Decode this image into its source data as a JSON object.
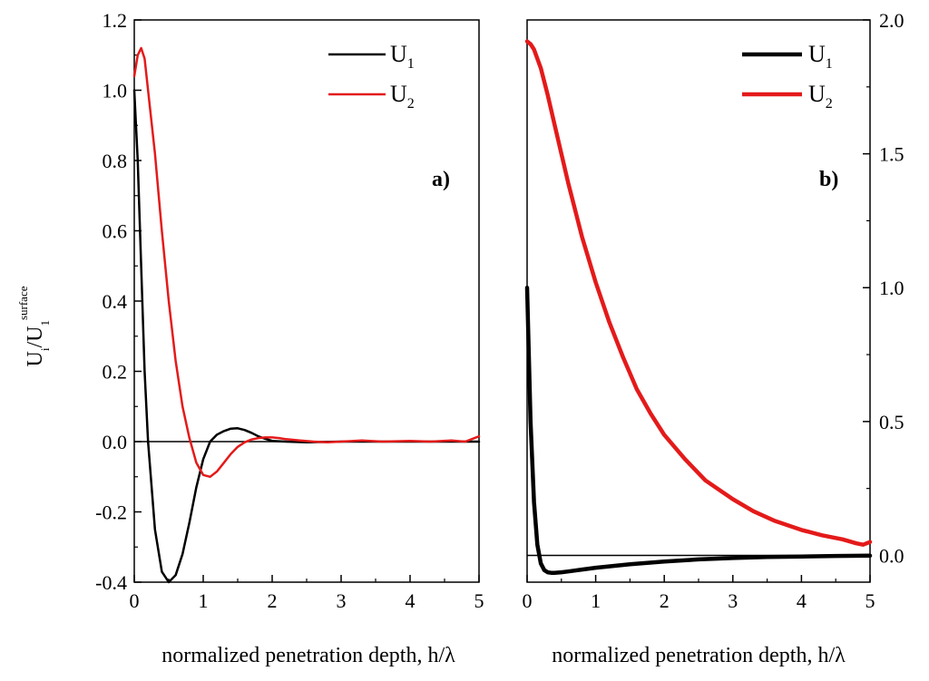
{
  "chart_data": [
    {
      "type": "line",
      "panel_label": "a)",
      "xlabel": "normalized penetration depth, h/λ",
      "ylabel": {
        "main": "U",
        "sub_i": "i",
        "slash": "/U",
        "sub_1": "1",
        "sup": "surface"
      },
      "xlim": [
        0,
        5
      ],
      "ylim": [
        -0.4,
        1.2
      ],
      "x_ticks": [
        0,
        1,
        2,
        3,
        4,
        5
      ],
      "y_ticks": [
        -0.4,
        -0.2,
        0.0,
        0.2,
        0.4,
        0.6,
        0.8,
        1.0,
        1.2
      ],
      "y_tick_labels": [
        "-0.4",
        "-0.2",
        "0.0",
        "0.2",
        "0.4",
        "0.6",
        "0.8",
        "1.0",
        "1.2"
      ],
      "x_tick_labels": [
        "0",
        "1",
        "2",
        "3",
        "4",
        "5"
      ],
      "y_axis_side": "left",
      "zero_line": true,
      "legend": [
        {
          "name": "U",
          "sub": "1",
          "color": "#000000"
        },
        {
          "name": "U",
          "sub": "2",
          "color": "#e41a1a"
        }
      ],
      "series": [
        {
          "name": "U1",
          "color": "#000000",
          "x": [
            0,
            0.05,
            0.1,
            0.15,
            0.2,
            0.3,
            0.4,
            0.5,
            0.6,
            0.7,
            0.8,
            0.9,
            1.0,
            1.1,
            1.2,
            1.3,
            1.4,
            1.5,
            1.6,
            1.7,
            1.8,
            1.9,
            2.0,
            2.2,
            2.5,
            3.0,
            3.5,
            4.0,
            4.5,
            5.0
          ],
          "y": [
            1.0,
            0.8,
            0.5,
            0.2,
            0.0,
            -0.25,
            -0.37,
            -0.4,
            -0.38,
            -0.32,
            -0.23,
            -0.13,
            -0.05,
            0.0,
            0.02,
            0.03,
            0.037,
            0.038,
            0.033,
            0.025,
            0.015,
            0.008,
            0.002,
            0.0,
            -0.002,
            0.0,
            0.0,
            0.0,
            0.0,
            0.0
          ]
        },
        {
          "name": "U2",
          "color": "#e41a1a",
          "x": [
            0,
            0.05,
            0.1,
            0.15,
            0.2,
            0.3,
            0.4,
            0.5,
            0.6,
            0.7,
            0.8,
            0.9,
            1.0,
            1.1,
            1.2,
            1.3,
            1.4,
            1.5,
            1.6,
            1.7,
            1.8,
            1.9,
            2.0,
            2.1,
            2.2,
            2.4,
            2.6,
            2.8,
            3.0,
            3.3,
            3.6,
            4.0,
            4.3,
            4.6,
            4.8,
            5.0
          ],
          "y": [
            1.04,
            1.1,
            1.12,
            1.09,
            1.0,
            0.82,
            0.6,
            0.4,
            0.23,
            0.1,
            0.01,
            -0.06,
            -0.095,
            -0.1,
            -0.085,
            -0.06,
            -0.035,
            -0.015,
            -0.002,
            0.006,
            0.01,
            0.012,
            0.012,
            0.01,
            0.007,
            0.003,
            0.0,
            -0.002,
            0.0,
            0.003,
            0.0,
            0.002,
            0.0,
            0.003,
            0.0,
            0.015
          ]
        }
      ]
    },
    {
      "type": "line",
      "panel_label": "b)",
      "xlabel": "normalized penetration depth, h/λ",
      "xlim": [
        0,
        5
      ],
      "ylim": [
        -0.1,
        2.0
      ],
      "x_ticks": [
        0,
        1,
        2,
        3,
        4,
        5
      ],
      "y_ticks": [
        0.0,
        0.5,
        1.0,
        1.5,
        2.0
      ],
      "y_tick_labels": [
        "0.0",
        "0.5",
        "1.0",
        "1.5",
        "2.0"
      ],
      "x_tick_labels": [
        "0",
        "1",
        "2",
        "3",
        "4",
        "5"
      ],
      "y_axis_side": "right",
      "zero_line": true,
      "legend": [
        {
          "name": "U",
          "sub": "1",
          "color": "#000000"
        },
        {
          "name": "U",
          "sub": "2",
          "color": "#e41a1a"
        }
      ],
      "series": [
        {
          "name": "U1",
          "color": "#000000",
          "x": [
            0,
            0.05,
            0.1,
            0.15,
            0.2,
            0.25,
            0.3,
            0.35,
            0.4,
            0.5,
            0.6,
            0.8,
            1.0,
            1.5,
            2.0,
            2.5,
            3.0,
            3.5,
            4.0,
            4.5,
            5.0
          ],
          "y": [
            1.0,
            0.5,
            0.2,
            0.04,
            -0.03,
            -0.055,
            -0.063,
            -0.065,
            -0.065,
            -0.063,
            -0.06,
            -0.053,
            -0.046,
            -0.033,
            -0.023,
            -0.015,
            -0.01,
            -0.006,
            -0.004,
            -0.002,
            -0.001
          ]
        },
        {
          "name": "U2",
          "color": "#e41a1a",
          "x": [
            0,
            0.05,
            0.1,
            0.2,
            0.3,
            0.4,
            0.5,
            0.6,
            0.8,
            1.0,
            1.2,
            1.4,
            1.6,
            1.8,
            2.0,
            2.3,
            2.6,
            3.0,
            3.3,
            3.6,
            4.0,
            4.3,
            4.6,
            4.8,
            4.9,
            5.0
          ],
          "y": [
            1.92,
            1.91,
            1.89,
            1.82,
            1.72,
            1.61,
            1.5,
            1.39,
            1.19,
            1.02,
            0.87,
            0.74,
            0.62,
            0.53,
            0.45,
            0.36,
            0.28,
            0.21,
            0.165,
            0.13,
            0.095,
            0.075,
            0.06,
            0.045,
            0.04,
            0.05
          ]
        }
      ]
    }
  ]
}
